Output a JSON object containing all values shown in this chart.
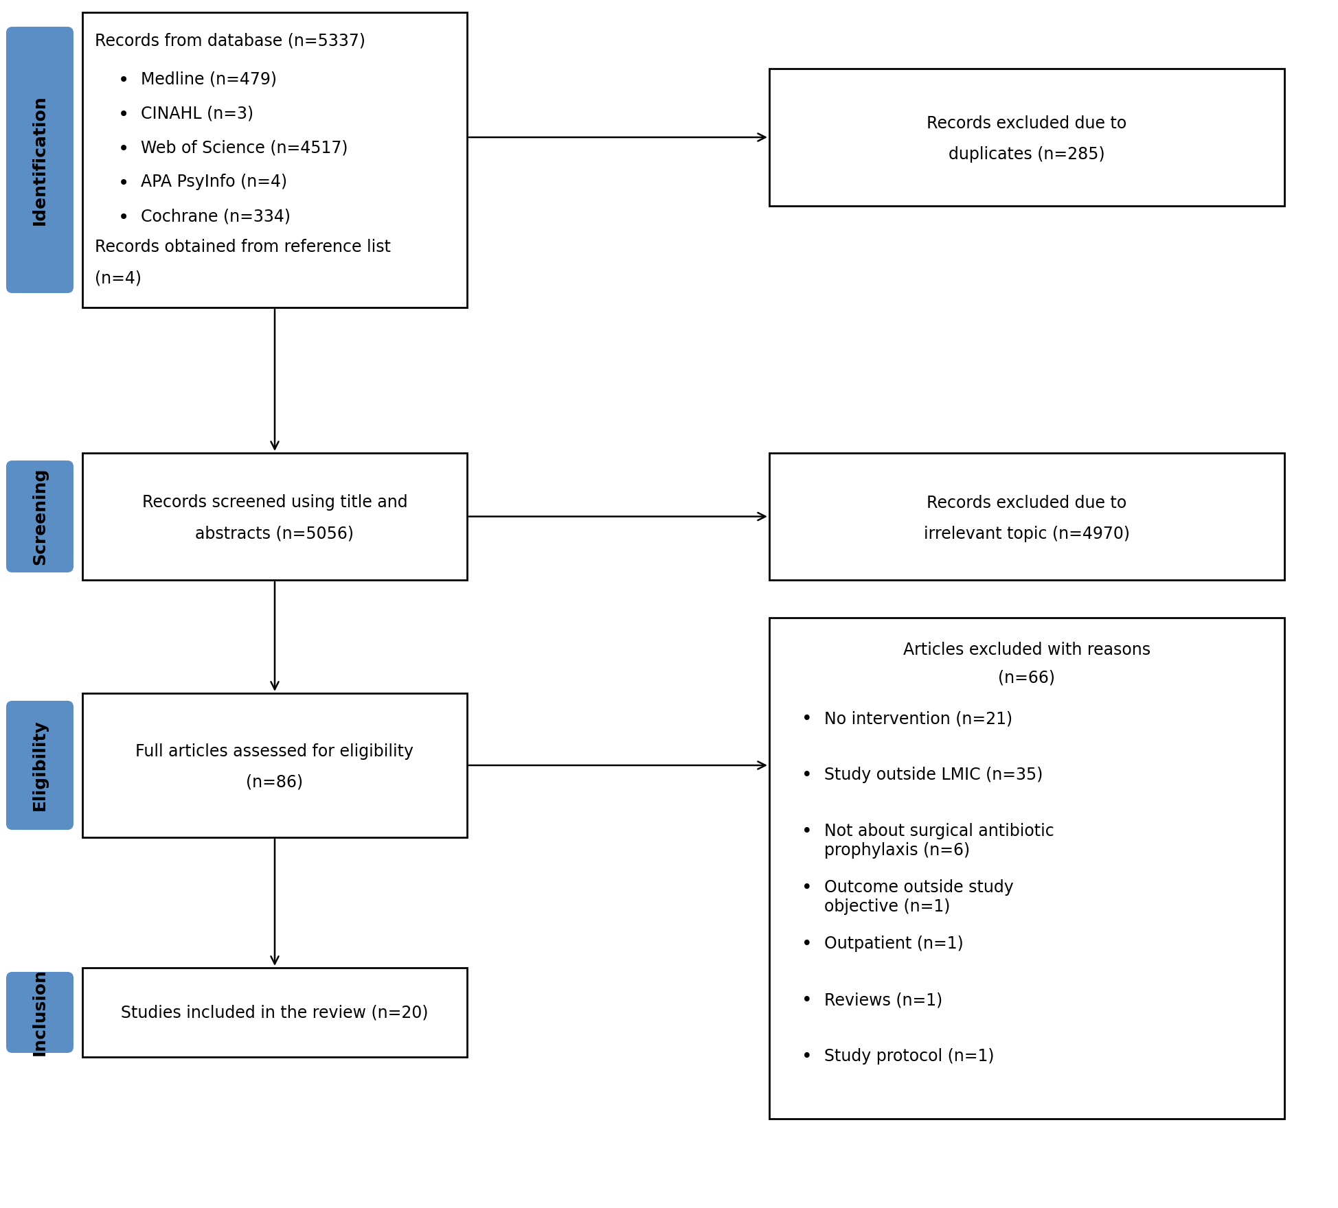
{
  "bg_color": "#ffffff",
  "box_color": "#ffffff",
  "box_edge_color": "#000000",
  "sidebar_color": "#5b8ec4",
  "box1_title": "Records from database (n=5337)",
  "box1_bullets": [
    "Medline (n=479)",
    "CINAHL (n=3)",
    "Web of Science (n=4517)",
    "APA PsyInfo (n=4)",
    "Cochrane (n=334)"
  ],
  "box1_extra_line1": "Records obtained from reference list",
  "box1_extra_line2": "(n=4)",
  "box2_line1": "Records excluded due to",
  "box2_line2": "duplicates (n=285)",
  "box3_line1": "Records screened using title and",
  "box3_line2": "abstracts (n=5056)",
  "box4_line1": "Records excluded due to",
  "box4_line2": "irrelevant topic (n=4970)",
  "box5_line1": "Full articles assessed for eligibility",
  "box5_line2": "(n=86)",
  "box6_title1": "Articles excluded with reasons",
  "box6_title2": "(n=66)",
  "box6_bullets": [
    "No intervention (n=21)",
    "Study outside LMIC (n=35)",
    "Not about surgical antibiotic\nprophylaxis (n=6)",
    "Outcome outside study\nobjective (n=1)",
    "Outpatient (n=1)",
    "Reviews (n=1)",
    "Study protocol (n=1)"
  ],
  "box7_text": "Studies included in the review (n=20)",
  "sidebar_labels": [
    "Identification",
    "Screening",
    "Eligibility",
    "Inclusion"
  ],
  "font_size": 17,
  "font_size_sidebar": 18,
  "font_family": "DejaVu Sans"
}
